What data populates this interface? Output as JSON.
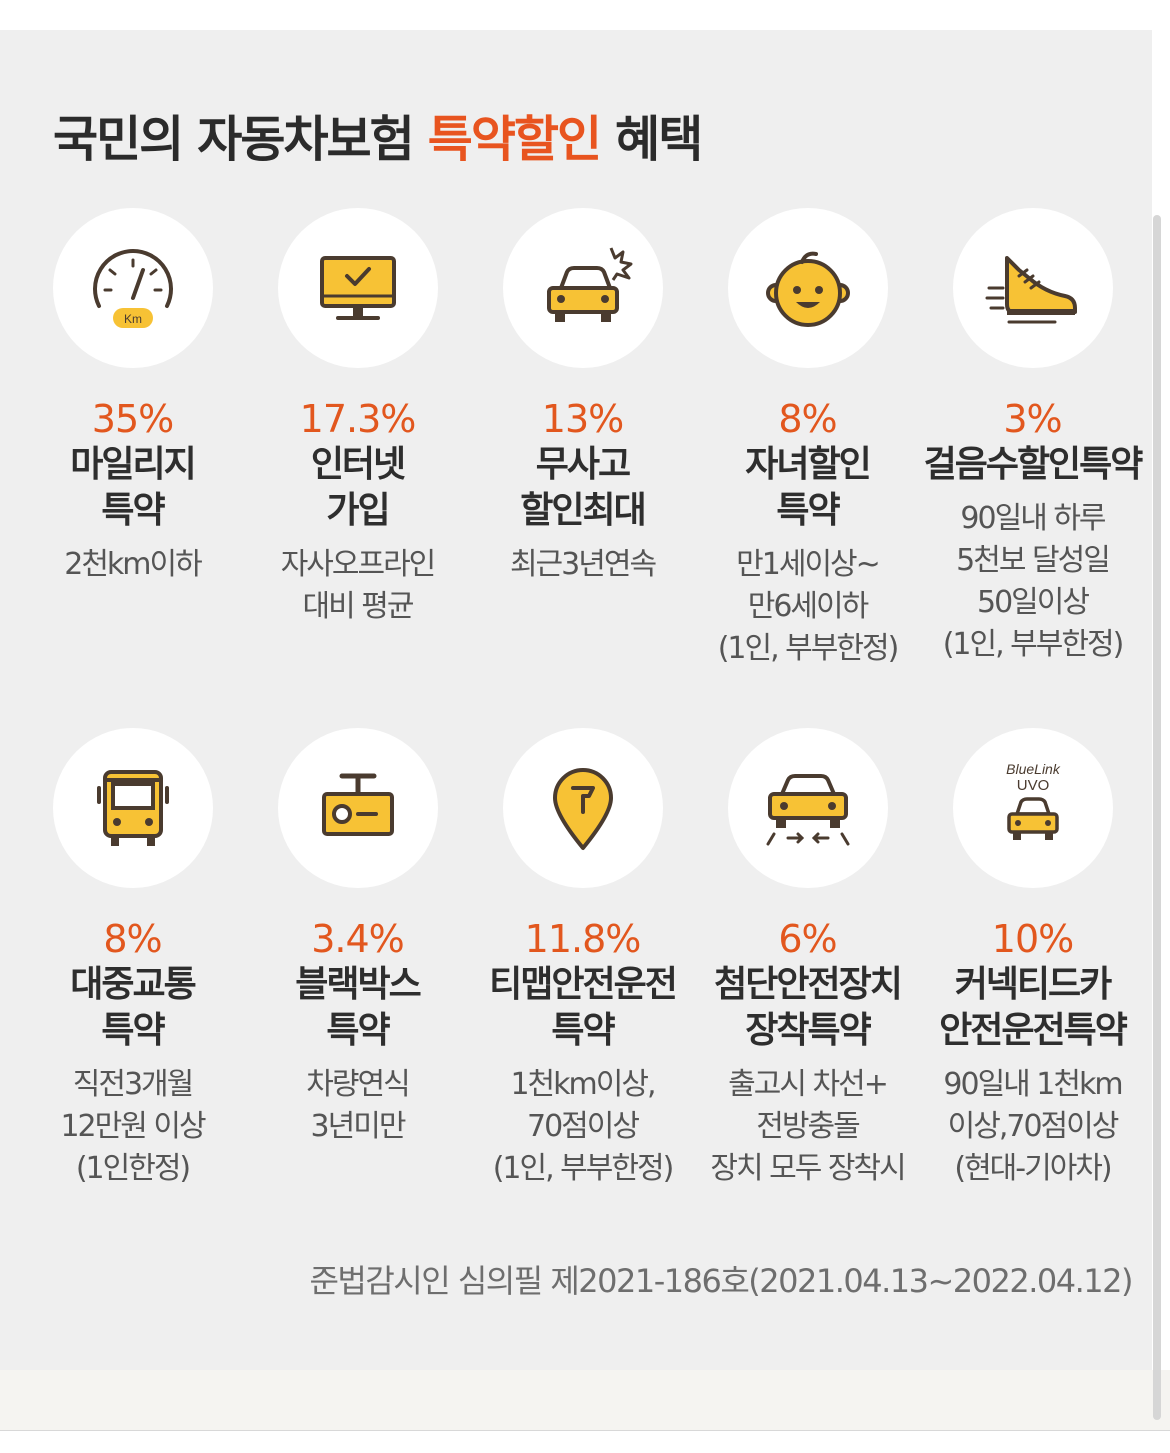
{
  "title": {
    "prefix": "국민의 자동차보험 ",
    "highlight": "특약할인",
    "suffix": " 혜택"
  },
  "colors": {
    "accent": "#e8541f",
    "icon_yellow": "#f7c235",
    "icon_dark": "#4a3b2f",
    "panel_bg": "#efefef"
  },
  "benefits": [
    {
      "icon": "speedometer-icon",
      "icon_text": "Km",
      "rate": "35%",
      "name": [
        "마일리지",
        "특약"
      ],
      "desc": [
        "2천km이하"
      ]
    },
    {
      "icon": "computer-monitor-icon",
      "rate": "17.3%",
      "name": [
        "인터넷",
        "가입"
      ],
      "desc": [
        "자사오프라인",
        "대비 평균"
      ]
    },
    {
      "icon": "car-crash-icon",
      "rate": "13%",
      "name": [
        "무사고",
        "할인최대"
      ],
      "desc": [
        "최근3년연속"
      ]
    },
    {
      "icon": "baby-face-icon",
      "rate": "8%",
      "name": [
        "자녀할인",
        "특약"
      ],
      "desc": [
        "만1세이상~",
        "만6세이하",
        "(1인, 부부한정)"
      ]
    },
    {
      "icon": "running-shoe-icon",
      "rate": "3%",
      "name": [
        "걸음수할인특약"
      ],
      "desc": [
        "90일내 하루",
        "5천보 달성일",
        "50일이상",
        "(1인, 부부한정)"
      ]
    },
    {
      "icon": "bus-icon",
      "rate": "8%",
      "name": [
        "대중교통",
        "특약"
      ],
      "desc": [
        "직전3개월",
        "12만원 이상",
        "(1인한정)"
      ]
    },
    {
      "icon": "dashcam-icon",
      "rate": "3.4%",
      "name": [
        "블랙박스",
        "특약"
      ],
      "desc": [
        "차량연식",
        "3년미만"
      ]
    },
    {
      "icon": "map-pin-icon",
      "rate": "11.8%",
      "name": [
        "티맵안전운전",
        "특약"
      ],
      "desc": [
        "1천km이상,",
        "70점이상",
        "(1인, 부부한정)"
      ]
    },
    {
      "icon": "car-lane-assist-icon",
      "rate": "6%",
      "name": [
        "첨단안전장치",
        "장착특약"
      ],
      "desc": [
        "출고시 차선+",
        "전방충돌",
        "장치 모두 장착시"
      ]
    },
    {
      "icon": "connected-car-icon",
      "icon_text": [
        "BlueLink",
        "UVO"
      ],
      "rate": "10%",
      "name": [
        "커넥티드카",
        "안전운전특약"
      ],
      "desc": [
        "90일내 1천km",
        "이상,70점이상",
        "(현대-기아차)"
      ]
    }
  ],
  "footnote": "준법감시인 심의필 제2021-186호(2021.04.13~2022.04.12)"
}
